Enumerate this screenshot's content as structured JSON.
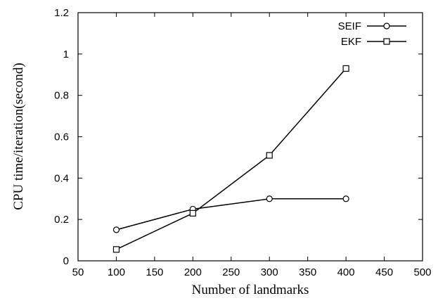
{
  "chart_data": {
    "type": "line",
    "xlabel": "Number of landmarks",
    "ylabel": "CPU time/iteration(second)",
    "xlim": [
      50,
      500
    ],
    "ylim": [
      0,
      1.2
    ],
    "xticks": [
      "50",
      "100",
      "150",
      "200",
      "250",
      "300",
      "350",
      "400",
      "450",
      "500"
    ],
    "yticks": [
      "0",
      "0.2",
      "0.4",
      "0.6",
      "0.8",
      "1",
      "1.2"
    ],
    "grid": false,
    "legend_position": "top-right",
    "series": [
      {
        "name": "SEIF",
        "marker": "circle",
        "x": [
          100,
          200,
          300,
          400
        ],
        "y": [
          0.15,
          0.25,
          0.3,
          0.3
        ]
      },
      {
        "name": "EKF",
        "marker": "square",
        "x": [
          100,
          200,
          300,
          400
        ],
        "y": [
          0.055,
          0.23,
          0.51,
          0.93
        ]
      }
    ]
  }
}
